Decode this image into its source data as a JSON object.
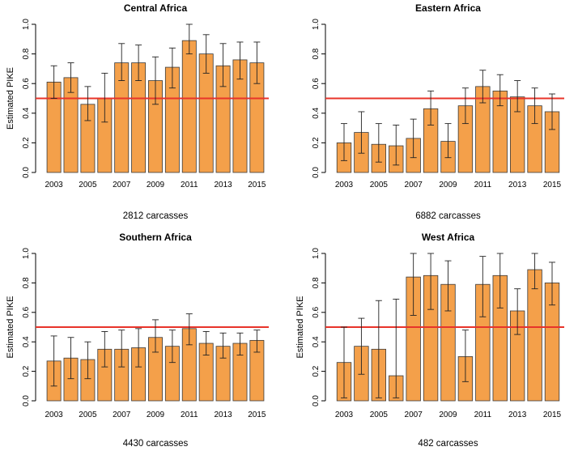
{
  "chart_data": [
    {
      "type": "bar",
      "title": "Central Africa",
      "ylabel": "Estimated PIKE",
      "footer": "2812 carcasses",
      "categories": [
        "2003",
        "2004",
        "2005",
        "2006",
        "2007",
        "2008",
        "2009",
        "2010",
        "2011",
        "2012",
        "2013",
        "2014",
        "2015"
      ],
      "x_tick_labels": [
        "2003",
        "2005",
        "2007",
        "2009",
        "2011",
        "2013",
        "2015"
      ],
      "y_ticks": [
        "0.0",
        "0.2",
        "0.4",
        "0.6",
        "0.8",
        "1.0"
      ],
      "ylim": [
        0,
        1
      ],
      "reference_line": 0.5,
      "values": [
        0.61,
        0.64,
        0.46,
        0.5,
        0.74,
        0.74,
        0.62,
        0.71,
        0.89,
        0.8,
        0.72,
        0.76,
        0.74
      ],
      "error_low": [
        0.5,
        0.54,
        0.35,
        0.34,
        0.62,
        0.62,
        0.46,
        0.57,
        0.8,
        0.67,
        0.58,
        0.63,
        0.6
      ],
      "error_high": [
        0.72,
        0.74,
        0.58,
        0.67,
        0.87,
        0.86,
        0.78,
        0.84,
        1.0,
        0.93,
        0.87,
        0.88,
        0.88
      ]
    },
    {
      "type": "bar",
      "title": "Eastern Africa",
      "ylabel": "",
      "footer": "6882 carcasses",
      "categories": [
        "2003",
        "2004",
        "2005",
        "2006",
        "2007",
        "2008",
        "2009",
        "2010",
        "2011",
        "2012",
        "2013",
        "2014",
        "2015"
      ],
      "x_tick_labels": [
        "2003",
        "2005",
        "2007",
        "2009",
        "2011",
        "2013",
        "2015"
      ],
      "y_ticks": [
        "0.0",
        "0.2",
        "0.4",
        "0.6",
        "0.8",
        "1.0"
      ],
      "ylim": [
        0,
        1
      ],
      "reference_line": 0.5,
      "values": [
        0.2,
        0.27,
        0.19,
        0.18,
        0.23,
        0.43,
        0.21,
        0.45,
        0.58,
        0.55,
        0.51,
        0.45,
        0.41
      ],
      "error_low": [
        0.08,
        0.13,
        0.07,
        0.05,
        0.1,
        0.32,
        0.1,
        0.33,
        0.47,
        0.45,
        0.41,
        0.33,
        0.29
      ],
      "error_high": [
        0.33,
        0.41,
        0.33,
        0.32,
        0.36,
        0.55,
        0.33,
        0.57,
        0.69,
        0.66,
        0.62,
        0.57,
        0.53
      ]
    },
    {
      "type": "bar",
      "title": "Southern Africa",
      "ylabel": "Estimated PIKE",
      "footer": "4430 carcasses",
      "categories": [
        "2003",
        "2004",
        "2005",
        "2006",
        "2007",
        "2008",
        "2009",
        "2010",
        "2011",
        "2012",
        "2013",
        "2014",
        "2015"
      ],
      "x_tick_labels": [
        "2003",
        "2005",
        "2007",
        "2009",
        "2011",
        "2013",
        "2015"
      ],
      "y_ticks": [
        "0.0",
        "0.2",
        "0.4",
        "0.6",
        "0.8",
        "1.0"
      ],
      "ylim": [
        0,
        1
      ],
      "reference_line": 0.5,
      "values": [
        0.27,
        0.29,
        0.28,
        0.35,
        0.35,
        0.36,
        0.43,
        0.37,
        0.49,
        0.39,
        0.37,
        0.39,
        0.41
      ],
      "error_low": [
        0.1,
        0.15,
        0.15,
        0.23,
        0.23,
        0.23,
        0.33,
        0.26,
        0.38,
        0.31,
        0.29,
        0.31,
        0.33
      ],
      "error_high": [
        0.44,
        0.43,
        0.4,
        0.47,
        0.48,
        0.49,
        0.55,
        0.48,
        0.59,
        0.47,
        0.46,
        0.46,
        0.48
      ]
    },
    {
      "type": "bar",
      "title": "West Africa",
      "ylabel": "Estimated PIKE",
      "footer": "482 carcasses",
      "categories": [
        "2003",
        "2004",
        "2005",
        "2006",
        "2007",
        "2008",
        "2009",
        "2010",
        "2011",
        "2012",
        "2013",
        "2014",
        "2015"
      ],
      "x_tick_labels": [
        "2003",
        "2005",
        "2007",
        "2009",
        "2011",
        "2013",
        "2015"
      ],
      "y_ticks": [
        "0.0",
        "0.2",
        "0.4",
        "0.6",
        "0.8",
        "1.0"
      ],
      "ylim": [
        0,
        1
      ],
      "reference_line": 0.5,
      "values": [
        0.26,
        0.37,
        0.35,
        0.17,
        0.84,
        0.85,
        0.79,
        0.3,
        0.79,
        0.85,
        0.61,
        0.89,
        0.8
      ],
      "error_low": [
        0.02,
        0.18,
        0.02,
        0.02,
        0.58,
        0.62,
        0.61,
        0.13,
        0.57,
        0.63,
        0.45,
        0.76,
        0.65
      ],
      "error_high": [
        0.5,
        0.56,
        0.68,
        0.69,
        1.0,
        1.0,
        0.95,
        0.48,
        0.98,
        1.0,
        0.76,
        1.0,
        0.94
      ]
    }
  ],
  "colors": {
    "bar_fill": "#f4a04a",
    "bar_stroke": "#3a3a3a",
    "reference_line": "#e8342a",
    "axis": "#000000"
  }
}
